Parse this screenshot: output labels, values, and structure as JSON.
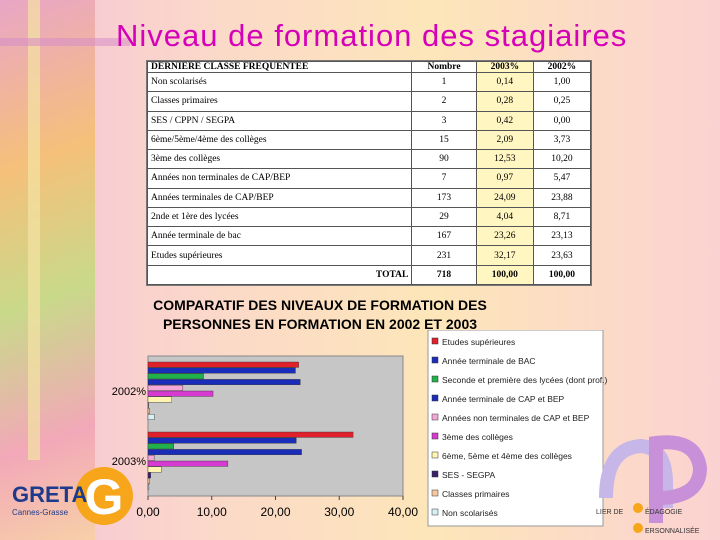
{
  "title": "Niveau de formation des stagiaires",
  "table": {
    "headers": [
      "DERNIERE CLASSE FREQUENTEE",
      "Nombre",
      "2003%",
      "2002%"
    ],
    "rows": [
      [
        "Non scolarisés",
        "1",
        "0,14",
        "1,00"
      ],
      [
        "Classes primaires",
        "2",
        "0,28",
        "0,25"
      ],
      [
        "SES / CPPN / SEGPA",
        "3",
        "0,42",
        "0,00"
      ],
      [
        "6ème/5ème/4ème des collèges",
        "15",
        "2,09",
        "3,73"
      ],
      [
        "3ème des collèges",
        "90",
        "12,53",
        "10,20"
      ],
      [
        "Années non terminales de CAP/BEP",
        "7",
        "0,97",
        "5,47"
      ],
      [
        "Années terminales de CAP/BEP",
        "173",
        "24,09",
        "23,88"
      ],
      [
        "2nde et 1ère des lycées",
        "29",
        "4,04",
        "8,71"
      ],
      [
        "Année terminale de bac",
        "167",
        "23,26",
        "23,13"
      ],
      [
        "Etudes supérieures",
        "231",
        "32,17",
        "23,63"
      ]
    ],
    "total": [
      "TOTAL",
      "718",
      "100,00",
      "100,00"
    ]
  },
  "chart_title_line1": "COMPARATIF DES NIVEAUX DE FORMATION DES",
  "chart_title_line2": "PERSONNES EN FORMATION EN 2002 ET 2003",
  "logo_left_main": "GRETA",
  "logo_left_letter": "G",
  "logo_left_sub": "Cannes-Grasse",
  "logo_right_line1": "LIER DE",
  "logo_right_line2": "ÉDAGOGIE",
  "logo_right_line3": "ERSONNALISÉE",
  "chart_data": {
    "type": "bar",
    "orientation": "horizontal",
    "groups": [
      "2002%",
      "2003%"
    ],
    "xlim": [
      0,
      40
    ],
    "xticks": [
      "0,00",
      "10,00",
      "20,00",
      "30,00",
      "40,00"
    ],
    "legend_position": "right",
    "series": [
      {
        "name": "Etudes supérieures",
        "color": "#e0202a",
        "values": [
          23.63,
          32.17
        ]
      },
      {
        "name": "Année terminale de BAC",
        "color": "#1a2db8",
        "values": [
          23.13,
          23.26
        ]
      },
      {
        "name": "Seconde et première des lycées (dont prof.)",
        "color": "#22b04a",
        "values": [
          8.71,
          4.04
        ]
      },
      {
        "name": "Année terminale de CAP et BEP",
        "color": "#1a2db8",
        "values": [
          23.88,
          24.09
        ]
      },
      {
        "name": "Années non terminales de CAP et BEP",
        "color": "#f4a8d8",
        "values": [
          5.47,
          0.97
        ]
      },
      {
        "name": "3ème des collèges",
        "color": "#d63ad0",
        "values": [
          10.2,
          12.53
        ]
      },
      {
        "name": "6ème, 5ème et 4ème des collèges",
        "color": "#fff4b0",
        "values": [
          3.73,
          2.09
        ]
      },
      {
        "name": "SES - SEGPA",
        "color": "#3a1f6a",
        "values": [
          0.0,
          0.42
        ]
      },
      {
        "name": "Classes primaires",
        "color": "#f7c8a0",
        "values": [
          0.25,
          0.28
        ]
      },
      {
        "name": "Non scolarisés",
        "color": "#d8f0f4",
        "values": [
          1.0,
          0.14
        ]
      }
    ]
  }
}
